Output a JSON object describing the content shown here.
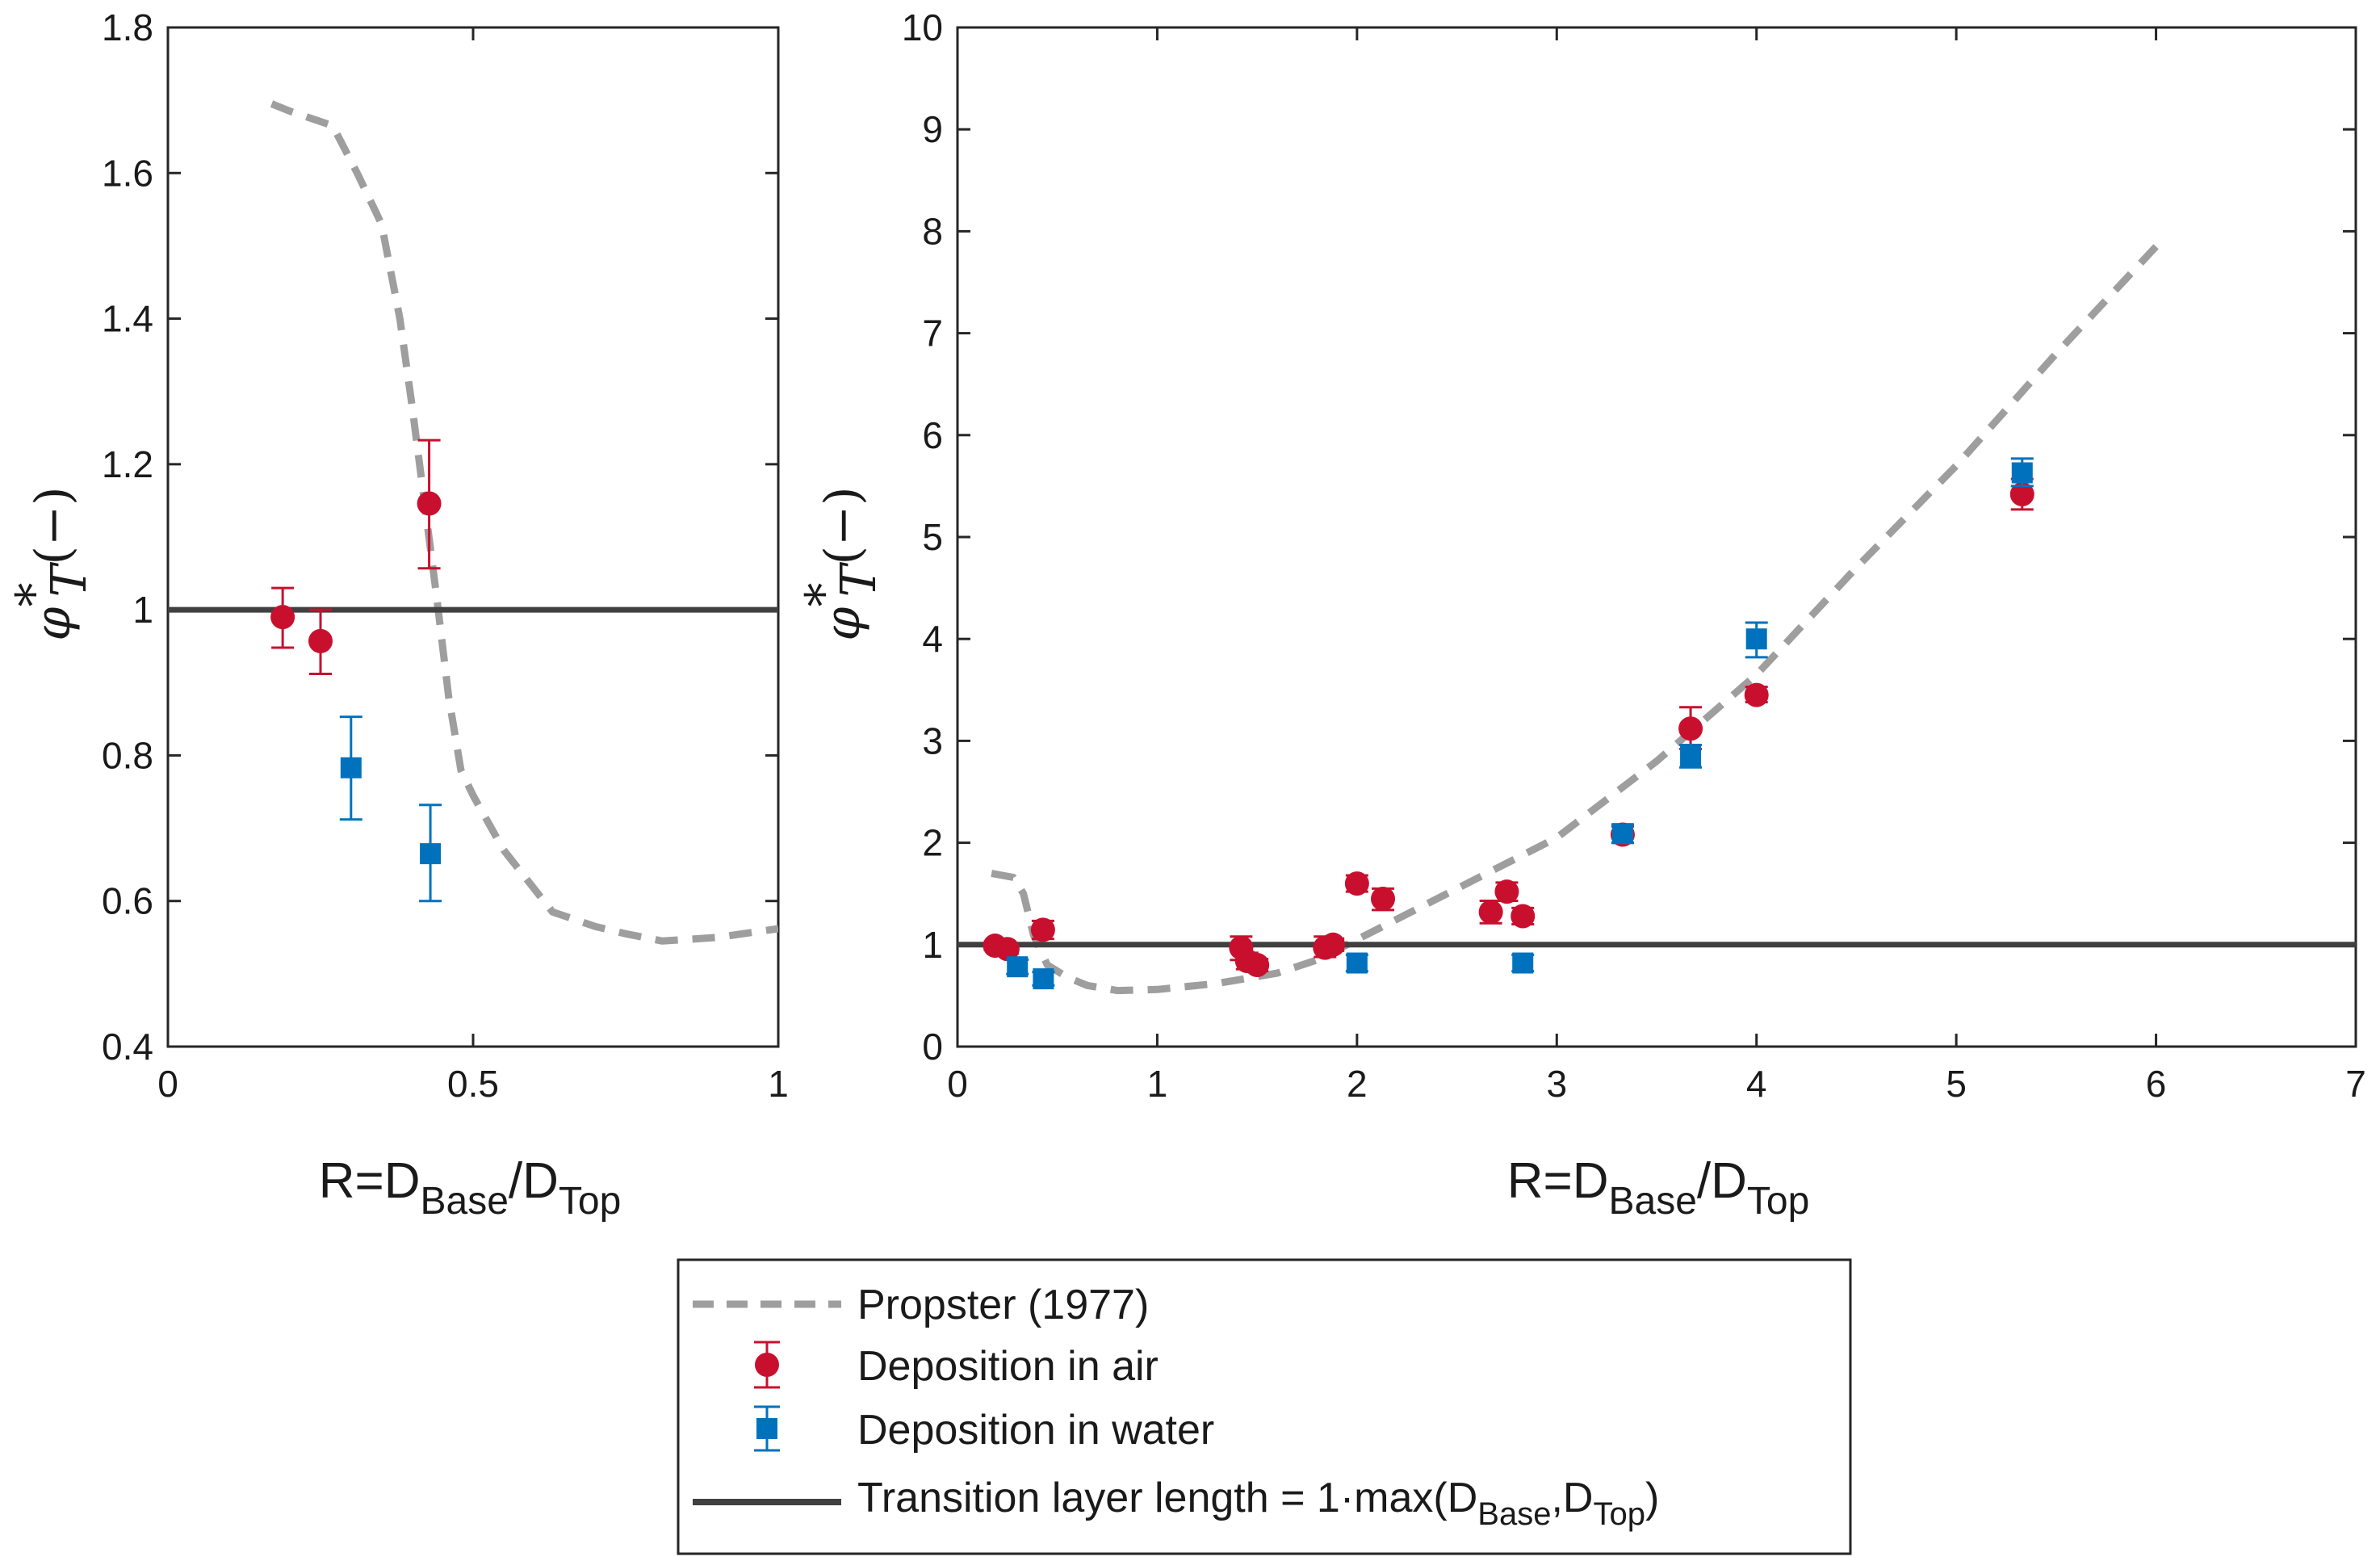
{
  "colors": {
    "air": "#C8102E",
    "water": "#0072BD",
    "propster": "#9E9E9E",
    "transition": "#404040",
    "axis": "#262626"
  },
  "icons": {
    "air_marker": "circle",
    "water_marker": "square"
  },
  "axes": {
    "xlabel_main": "R=D",
    "xlabel_sub1": "Base",
    "xlabel_sep": "/D",
    "xlabel_sub2": "Top",
    "ylabel_sym": "φ",
    "ylabel_sup": "*",
    "ylabel_sub": "T",
    "ylabel_unit": "(−)"
  },
  "legend": {
    "propster": "Propster (1977)",
    "air": "Deposition in air",
    "water": "Deposition in water",
    "transition_main": "Transition layer length = 1·max(D",
    "transition_sub1": "Base",
    "transition_sep": ",D",
    "transition_sub2": "Top",
    "transition_end": ")"
  },
  "chart_data": [
    {
      "type": "scatter",
      "xlim": [
        0,
        1
      ],
      "ylim": [
        0.4,
        1.8
      ],
      "xticks": [
        0,
        0.5,
        1
      ],
      "xtick_labels": [
        "0",
        "0.5",
        "1"
      ],
      "yticks": [
        0.4,
        0.6,
        0.8,
        1,
        1.2,
        1.4,
        1.6,
        1.8
      ],
      "ytick_labels": [
        "0.4",
        "0.6",
        "0.8",
        "1",
        "1.2",
        "1.4",
        "1.6",
        "1.8"
      ],
      "grid": false,
      "series": [
        {
          "name": "Propster (1977)",
          "kind": "line",
          "style": "dashed",
          "x": [
            0.17,
            0.2,
            0.27,
            0.31,
            0.35,
            0.38,
            0.4,
            0.42,
            0.44,
            0.46,
            0.48,
            0.5,
            0.55,
            0.63,
            0.7,
            0.75,
            0.81,
            0.9,
            1.0
          ],
          "y": [
            1.695,
            1.685,
            1.665,
            1.6,
            1.53,
            1.4,
            1.28,
            1.15,
            1.02,
            0.88,
            0.78,
            0.745,
            0.67,
            0.585,
            0.565,
            0.555,
            0.545,
            0.55,
            0.562
          ]
        },
        {
          "name": "Deposition in air",
          "kind": "points",
          "x": [
            0.188,
            0.25,
            0.428
          ],
          "y": [
            0.99,
            0.957,
            1.146
          ],
          "err_low": [
            0.948,
            0.912,
            1.057
          ],
          "err_high": [
            1.03,
            1.0,
            1.233
          ]
        },
        {
          "name": "Deposition in water",
          "kind": "points",
          "x": [
            0.3,
            0.43
          ],
          "y": [
            0.783,
            0.665
          ],
          "err_low": [
            0.712,
            0.6
          ],
          "err_high": [
            0.853,
            0.732
          ]
        },
        {
          "name": "Transition layer length = 1·max(DBase,DTop)",
          "kind": "hline",
          "y": 1.0
        }
      ]
    },
    {
      "type": "scatter",
      "xlim": [
        0,
        7
      ],
      "ylim": [
        0,
        10
      ],
      "xticks": [
        0,
        1,
        2,
        3,
        4,
        5,
        6,
        7
      ],
      "xtick_labels": [
        "0",
        "1",
        "2",
        "3",
        "4",
        "5",
        "6",
        "7"
      ],
      "yticks": [
        0,
        1,
        2,
        3,
        4,
        5,
        6,
        7,
        8,
        9,
        10
      ],
      "ytick_labels": [
        "0",
        "1",
        "2",
        "3",
        "4",
        "5",
        "6",
        "7",
        "8",
        "9",
        "10"
      ],
      "grid": false,
      "series": [
        {
          "name": "Propster (1977)",
          "kind": "line",
          "style": "dashed",
          "x": [
            0.17,
            0.28,
            0.33,
            0.38,
            0.45,
            0.55,
            0.65,
            0.8,
            1.0,
            1.3,
            1.6,
            1.8,
            2.0,
            2.5,
            3.0,
            3.5,
            4.0,
            4.5,
            5.0,
            5.5,
            6.0
          ],
          "y": [
            1.7,
            1.66,
            1.5,
            1.1,
            0.8,
            0.68,
            0.6,
            0.55,
            0.56,
            0.62,
            0.72,
            0.85,
            1.05,
            1.55,
            2.05,
            2.8,
            3.65,
            4.7,
            5.7,
            6.8,
            7.85
          ]
        },
        {
          "name": "Deposition in air",
          "kind": "points",
          "x": [
            0.188,
            0.25,
            0.428,
            1.42,
            1.45,
            1.5,
            1.84,
            1.88,
            2.0,
            2.13,
            2.67,
            2.75,
            2.83,
            3.33,
            3.67,
            4.0,
            5.33
          ],
          "y": [
            0.99,
            0.957,
            1.146,
            0.97,
            0.84,
            0.8,
            0.97,
            1.0,
            1.6,
            1.45,
            1.32,
            1.52,
            1.28,
            2.08,
            3.12,
            3.45,
            5.42
          ],
          "err_low": [
            0.948,
            0.912,
            1.057,
            0.85,
            0.76,
            0.74,
            0.88,
            0.94,
            1.52,
            1.34,
            1.21,
            1.43,
            1.2,
            2.0,
            2.92,
            3.38,
            5.27
          ],
          "err_high": [
            1.03,
            1.0,
            1.233,
            1.08,
            0.92,
            0.86,
            1.08,
            1.06,
            1.68,
            1.55,
            1.43,
            1.61,
            1.36,
            2.16,
            3.33,
            3.53,
            5.57
          ]
        },
        {
          "name": "Deposition in water",
          "kind": "points",
          "x": [
            0.3,
            0.43,
            2.0,
            2.83,
            3.33,
            3.67,
            4.0,
            5.33
          ],
          "y": [
            0.783,
            0.665,
            0.82,
            0.82,
            2.09,
            2.85,
            4.0,
            5.63
          ],
          "err_low": [
            0.712,
            0.6,
            0.74,
            0.74,
            2.0,
            2.74,
            3.82,
            5.5
          ],
          "err_high": [
            0.853,
            0.732,
            0.9,
            0.9,
            2.18,
            2.96,
            4.16,
            5.77
          ]
        },
        {
          "name": "Transition layer length = 1·max(DBase,DTop)",
          "kind": "hline",
          "y": 1.0
        }
      ]
    }
  ]
}
